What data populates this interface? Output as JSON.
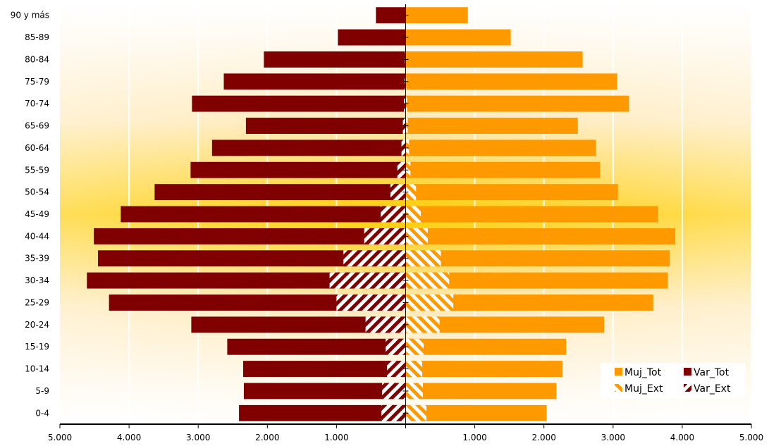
{
  "chart_data": {
    "type": "bar",
    "orientation": "horizontal",
    "layout": "population-pyramid",
    "title": "",
    "categories": [
      "0-4",
      "5-9",
      "10-14",
      "15-19",
      "20-24",
      "25-29",
      "30-34",
      "35-39",
      "40-44",
      "45-49",
      "50-54",
      "55-59",
      "60-64",
      "65-69",
      "70-74",
      "75-79",
      "80-84",
      "85-89",
      "90 y más"
    ],
    "series": [
      {
        "name": "Muj_Tot",
        "side": "right",
        "pattern": "solid",
        "color": "#ff9900",
        "values": [
          2040,
          2180,
          2270,
          2320,
          2870,
          3580,
          3790,
          3820,
          3900,
          3650,
          3070,
          2810,
          2750,
          2490,
          3230,
          3060,
          2560,
          1520,
          900
        ]
      },
      {
        "name": "Var_Tot",
        "side": "left",
        "pattern": "solid",
        "color": "#800000",
        "values": [
          2410,
          2340,
          2350,
          2580,
          3100,
          4290,
          4610,
          4450,
          4510,
          4120,
          3630,
          3110,
          2800,
          2310,
          3090,
          2630,
          2050,
          980,
          430
        ]
      },
      {
        "name": "Muj_Ext",
        "side": "right",
        "pattern": "hatched",
        "color": "#ff9900",
        "values": [
          300,
          250,
          240,
          260,
          490,
          690,
          630,
          510,
          320,
          220,
          150,
          70,
          50,
          30,
          20,
          10,
          5,
          5,
          0
        ]
      },
      {
        "name": "Var_Ext",
        "side": "left",
        "pattern": "hatched",
        "color": "#800000",
        "values": [
          350,
          340,
          270,
          290,
          580,
          1000,
          1100,
          900,
          600,
          360,
          220,
          120,
          60,
          40,
          25,
          15,
          10,
          5,
          0
        ]
      }
    ],
    "xaxis": {
      "range": [
        -5000,
        5000
      ],
      "ticks": [
        -5000,
        -4000,
        -3000,
        -2000,
        -1000,
        0,
        1000,
        2000,
        3000,
        4000,
        5000
      ],
      "tick_labels": [
        "5.000",
        "4.000",
        "3.000",
        "2.000",
        "1.000",
        "",
        "1.000",
        "2.000",
        "3.000",
        "4.000",
        "5.000"
      ]
    },
    "grid": true,
    "legend": {
      "position": "bottom-right",
      "entries": [
        "Muj_Tot",
        "Var_Tot",
        "Muj_Ext",
        "Var_Ext"
      ]
    }
  },
  "colors": {
    "women": "#ff9900",
    "men": "#800000",
    "band_light": "#fff8e6",
    "band_dark": "#ffcc00"
  }
}
